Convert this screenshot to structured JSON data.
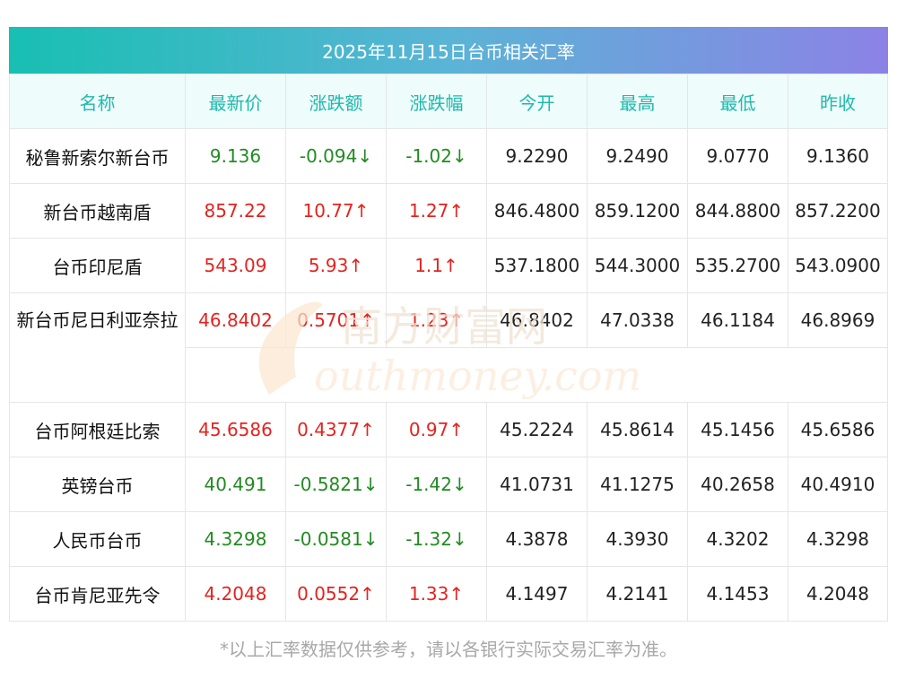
{
  "title": "2025年11月15日台币相关汇率",
  "headers": [
    "名称",
    "最新价",
    "涨跌额",
    "涨跌幅",
    "今开",
    "最高",
    "最低",
    "昨收"
  ],
  "rows": [
    {
      "name": "秘鲁新索尔新台币",
      "latest": "9.136",
      "change": "-0.094↓",
      "change_pct": "-1.02↓",
      "open": "9.2290",
      "high": "9.2490",
      "low": "9.0770",
      "prev_close": "9.1360",
      "trend": "down"
    },
    {
      "name": "新台币越南盾",
      "latest": "857.22",
      "change": "10.77↑",
      "change_pct": "1.27↑",
      "open": "846.4800",
      "high": "859.1200",
      "low": "844.8800",
      "prev_close": "857.2200",
      "trend": "up"
    },
    {
      "name": "台币印尼盾",
      "latest": "543.09",
      "change": "5.93↑",
      "change_pct": "1.1↑",
      "open": "537.1800",
      "high": "544.3000",
      "low": "535.2700",
      "prev_close": "543.0900",
      "trend": "up"
    },
    {
      "name": "新台币尼日利亚奈拉",
      "latest": "46.8402",
      "change": "0.5701↑",
      "change_pct": "1.23↑",
      "open": "46.8402",
      "high": "47.0338",
      "low": "46.1184",
      "prev_close": "46.8969",
      "trend": "up"
    },
    {
      "name": "台币阿根廷比索",
      "latest": "45.6586",
      "change": "0.4377↑",
      "change_pct": "0.97↑",
      "open": "45.2224",
      "high": "45.8614",
      "low": "45.1456",
      "prev_close": "45.6586",
      "trend": "up"
    },
    {
      "name": "英镑台币",
      "latest": "40.491",
      "change": "-0.5821↓",
      "change_pct": "-1.42↓",
      "open": "41.0731",
      "high": "41.1275",
      "low": "40.2658",
      "prev_close": "40.4910",
      "trend": "down"
    },
    {
      "name": "人民币台币",
      "latest": "4.3298",
      "change": "-0.0581↓",
      "change_pct": "-1.32↓",
      "open": "4.3878",
      "high": "4.3930",
      "low": "4.3202",
      "prev_close": "4.3298",
      "trend": "down"
    },
    {
      "name": "台币肯尼亚先令",
      "latest": "4.2048",
      "change": "0.0552↑",
      "change_pct": "1.33↑",
      "open": "4.1497",
      "high": "4.2141",
      "low": "4.1453",
      "prev_close": "4.2048",
      "trend": "up"
    }
  ],
  "watermark": {
    "line1": "南方财富网",
    "line2": "outhmoney.com"
  },
  "footnote": "*以上汇率数据仅供参考，请以各银行实际交易汇率为准。",
  "colors": {
    "up": "#e4231e",
    "down": "#228b22",
    "header_text": "#20b9ad"
  }
}
